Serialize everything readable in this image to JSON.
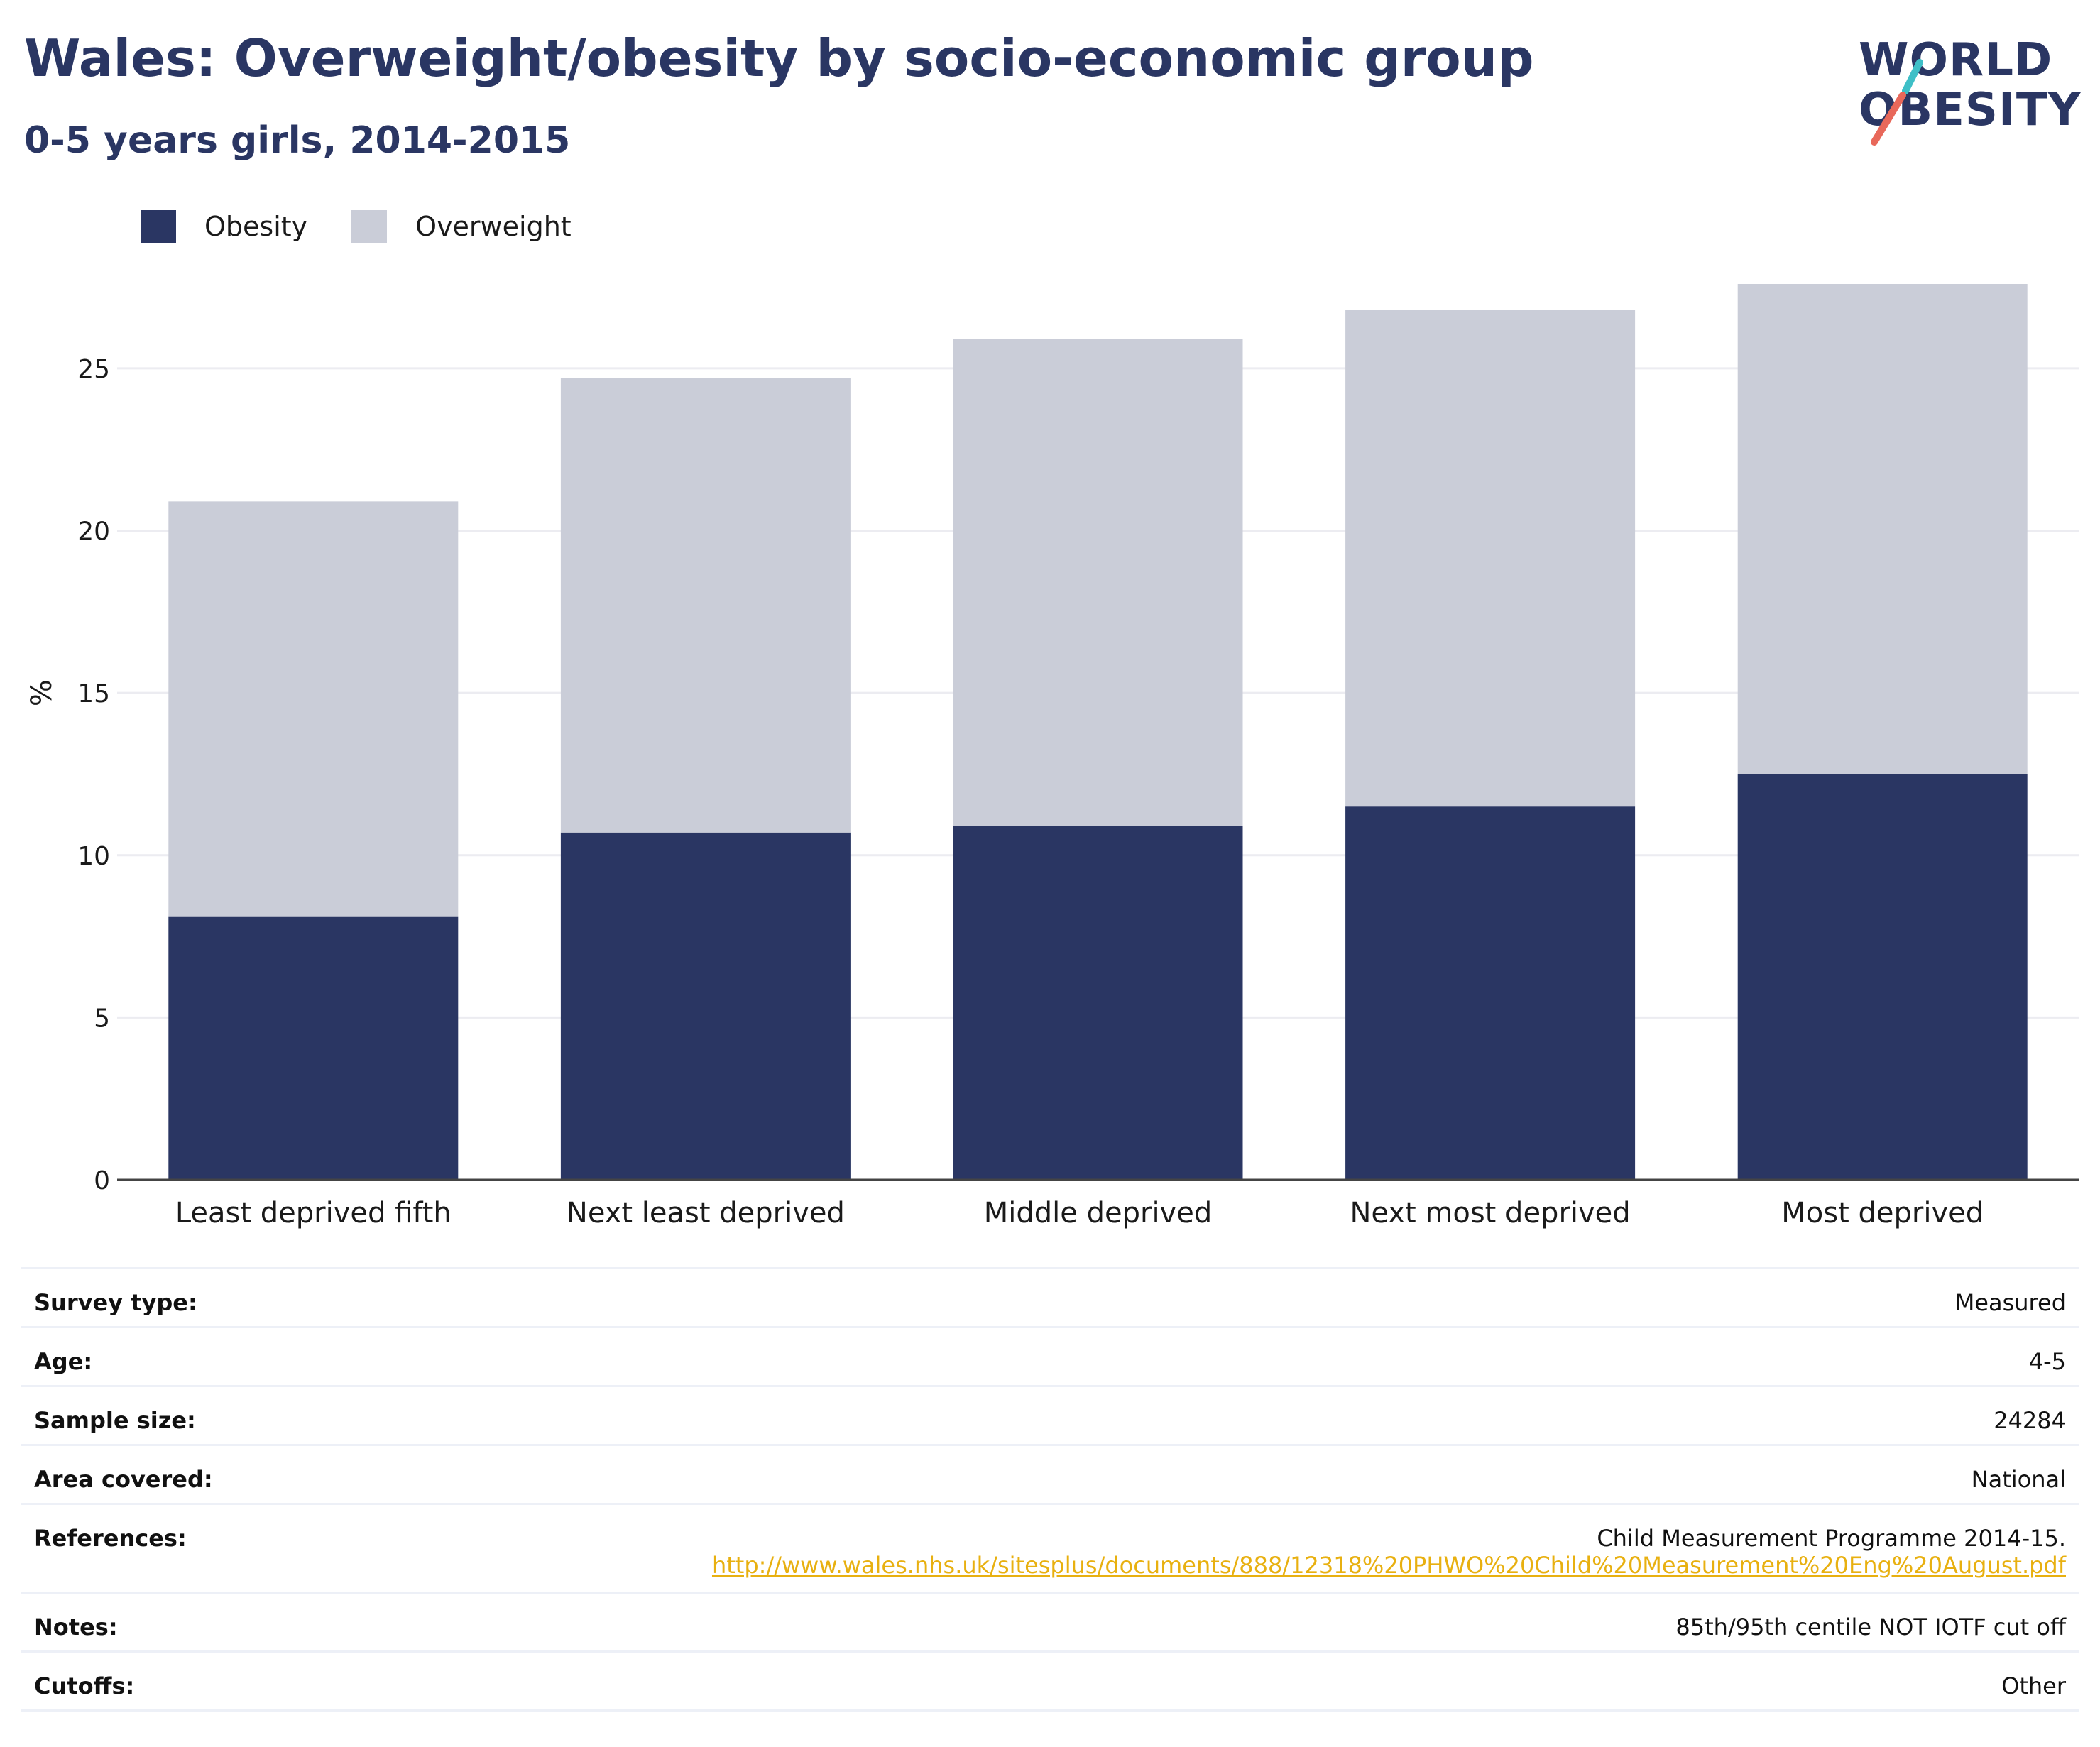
{
  "header": {
    "title": "Wales: Overweight/obesity by socio-economic group",
    "subtitle": "0-5 years girls, 2014-2015"
  },
  "logo": {
    "line1": "WORLD",
    "line2": "OBESITY",
    "slash_colors": [
      "#3ebfc7",
      "#e8685a"
    ]
  },
  "legend": {
    "items": [
      {
        "label": "Obesity",
        "color": "#2a3663"
      },
      {
        "label": "Overweight",
        "color": "#cacdd8"
      }
    ]
  },
  "chart_data": {
    "type": "bar",
    "stacked": true,
    "categories": [
      "Least deprived fifth",
      "Next least deprived",
      "Middle deprived",
      "Next most deprived",
      "Most deprived"
    ],
    "series": [
      {
        "name": "Obesity",
        "color": "#2a3663",
        "values": [
          8.1,
          10.7,
          10.9,
          11.5,
          12.5
        ]
      },
      {
        "name": "Overweight",
        "color": "#cacdd8",
        "values": [
          12.8,
          14.0,
          15.0,
          15.3,
          15.1
        ]
      }
    ],
    "ylabel": "%",
    "ylim": [
      0,
      27.6
    ],
    "yticks": [
      0,
      5,
      10,
      15,
      20,
      25
    ],
    "grid": true,
    "legend_position": "top-left"
  },
  "meta": {
    "rows": [
      {
        "label": "Survey type:",
        "value": "Measured"
      },
      {
        "label": "Age:",
        "value": "4-5"
      },
      {
        "label": "Sample size:",
        "value": "24284"
      },
      {
        "label": "Area covered:",
        "value": "National"
      },
      {
        "label": "References:",
        "value": "Child Measurement Programme 2014-15.",
        "link": "http://www.wales.nhs.uk/sitesplus/documents/888/12318%20PHWO%20Child%20Measurement%20Eng%20August.pdf"
      },
      {
        "label": "Notes:",
        "value": "85th/95th centile NOT IOTF cut off"
      },
      {
        "label": "Cutoffs:",
        "value": "Other"
      }
    ]
  }
}
